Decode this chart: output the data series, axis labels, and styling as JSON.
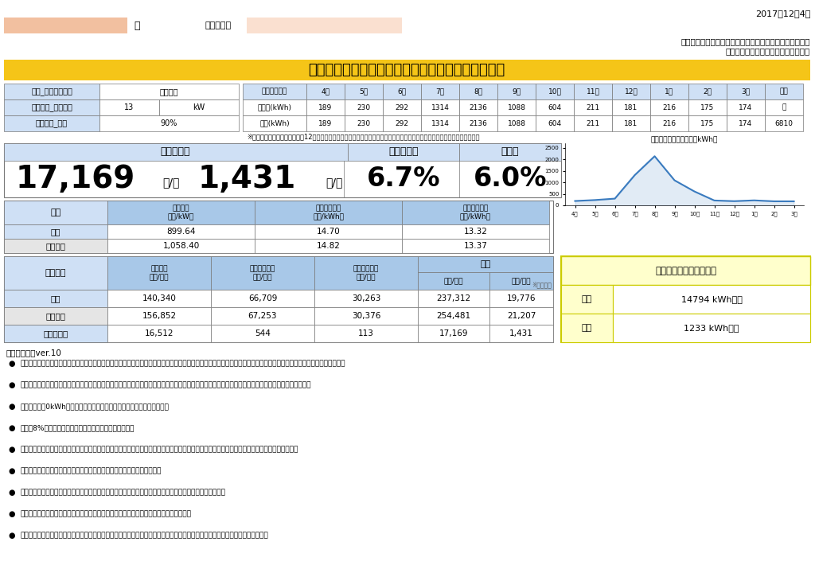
{
  "date": "2017年12月4日",
  "company_line1": "イーレックス・スパーク・エリアマーケティング株式会社",
  "company_line2": "株式会社モリカワ・モリカワのでんき",
  "name_label": "様",
  "usage_place_label": "ご使用場所",
  "main_title": "電気料金シミュレーション＿近畿エリア＿低圧電力",
  "contract_plan_label": "弊社_ご契約プラン",
  "contract_plan_value": "低圧電力",
  "kansai_power_label": "関西電力_契約電力",
  "kansai_power_value": "13",
  "kansai_power_unit": "kW",
  "kansai_rate_label": "関西電力_力率",
  "kansai_rate_value": "90%",
  "usage_table_header": [
    "お客様使用量",
    "4月",
    "5月",
    "6月",
    "7月",
    "8月",
    "9月",
    "10月",
    "11月",
    "12月",
    "1月",
    "2月",
    "3月",
    "年間"
  ],
  "usage_input": [
    "ご入力(kWh)",
    "189",
    "230",
    "292",
    "1314",
    "2136",
    "1088",
    "604",
    "211",
    "181",
    "216",
    "175",
    "174",
    "－"
  ],
  "usage_estimate": [
    "推定(kWh)",
    "189",
    "230",
    "292",
    "1314",
    "2136",
    "1088",
    "604",
    "211",
    "181",
    "216",
    "175",
    "174",
    "6810"
  ],
  "note_table": "※当料金プランへのお申込には12ヶ月分のご入力が必須となっております。シミュレーションの精度を高める必要がございます",
  "savings_label": "推定削減額",
  "savings_value": "17,169",
  "savings_unit": "円/年",
  "monthly_savings_value": "1,431",
  "monthly_savings_unit": "円/月",
  "reduction_rate_label": "推定削減率",
  "reduction_rate_value": "6.7%",
  "load_factor_label": "負荷率",
  "load_factor_value": "6.0%",
  "chart_title": "月々の推定使用電力量（kWh）",
  "chart_months": [
    "4月",
    "5月",
    "6月",
    "7月",
    "8月",
    "9月",
    "10月",
    "11月",
    "12月",
    "1月",
    "2月",
    "3月"
  ],
  "chart_values": [
    189,
    230,
    292,
    1314,
    2136,
    1088,
    604,
    211,
    181,
    216,
    175,
    174
  ],
  "unit_price_label": "単価",
  "basic_fee_label": "基本料金",
  "summer_rate_label": "夏季従量料金",
  "other_rate_label": "他季従量料金",
  "unit_per_kw": "（円/kW）",
  "unit_per_kwh": "（円/kWh）",
  "our_company_label": "弊社",
  "kansai_label": "関西電力",
  "our_basic": "899.64",
  "our_summer": "14.70",
  "our_other": "13.32",
  "kansai_basic": "1,058.40",
  "kansai_summer": "14.82",
  "kansai_other": "13.37",
  "fee_calc_label": "料金試算",
  "fee_total_label": "合計",
  "fee_avg_note": "※通年平均",
  "our_basic_year": "140,340",
  "our_summer_year": "66,709",
  "our_other_year": "30,263",
  "our_total_year": "237,312",
  "our_total_month": "19,776",
  "kansai_basic_year": "156,852",
  "kansai_summer_year": "67,253",
  "kansai_other_year": "30,376",
  "kansai_total_year": "254,481",
  "kansai_total_month": "21,207",
  "diff_basic_year": "16,512",
  "diff_summer_year": "544",
  "diff_other_year": "113",
  "diff_total_year": "17,169",
  "diff_total_month": "1,431",
  "diff_label": "推定削減額",
  "signup_label": "申込み可能な使用電力量",
  "signup_year_label": "年間",
  "signup_year_value": "14794 kWh以下",
  "signup_month_label": "月間",
  "signup_month_value": "1233 kWh以下",
  "notes": [
    "推定削減額が表示されない場合、契約電力に対する使用電力量が弊社の基準（右表参照）以下でないため、大変申し訳ありませんが、申込をお断りさせていただきます。",
    "本シミュレーションにあたり、ご教示いただいた使用電力量がご契約後の実績と著しくかけ離れた場合、弊社からご解約を要請することがございます。",
    "使用電力量が0kWhとなる月は、基本料金を半額とさせていただきます。",
    "消費税8%を含んだ単価、料金試算を提示しております。",
    "弊社は力率割引または力率割増を適用しておりませんが、関西電力の基本料金には力率割引または力率割増が適用されているものかございます。",
    "供給開始日はお申込み後、最初の関西電力の検針日を予定しております。",
    "このシミュレーションは参考値ですので、お客様のご使用状況が変わった場合、各試算結果が変わります。",
    "試算結果には再生可能エネルギー発電促進賦課金・燃料費調整額は含まれておりません。",
    "供給開始後は再生可能エネルギー発電促進賦課金・燃料費調整額を加味してご請求いたします。（算定式は関西電力と同一です）"
  ],
  "notes_title": "ご注意事項＿ver.10",
  "bg_color": "#ffffff",
  "header_bg": "#f5c518",
  "light_blue": "#cfe0f5",
  "mid_blue": "#a8c8e8",
  "table_border": "#777777",
  "highlight_yellow": "#ffffcc",
  "highlight_yellow_border": "#cccc00"
}
